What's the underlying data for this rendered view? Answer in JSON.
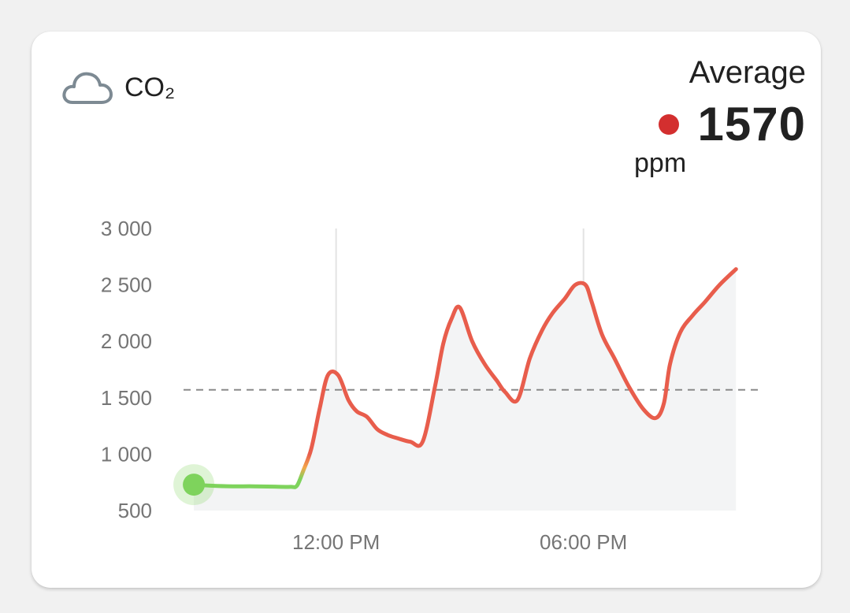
{
  "card": {
    "title": "CO₂",
    "icon": "cloud-icon",
    "average_label": "Average",
    "average_value": "1570",
    "average_unit": "ppm",
    "status_color": "#d32f2f"
  },
  "chart_data": {
    "type": "line",
    "title": "",
    "xlabel": "",
    "ylabel": "",
    "ylim": [
      500,
      3000
    ],
    "xlim": [
      8.3,
      22.0
    ],
    "x_ticks": [
      {
        "value": 12,
        "label": "12:00 PM"
      },
      {
        "value": 18,
        "label": "06:00 PM"
      }
    ],
    "y_ticks": [
      {
        "value": 3000,
        "label": "3 000"
      },
      {
        "value": 2500,
        "label": "2 500"
      },
      {
        "value": 2000,
        "label": "2 000"
      },
      {
        "value": 1500,
        "label": "1 500"
      },
      {
        "value": 1000,
        "label": "1 000"
      },
      {
        "value": 500,
        "label": "500"
      }
    ],
    "vertical_grid": true,
    "average_line": 1570,
    "series": [
      {
        "x": [
          8.55,
          9.0,
          9.5,
          10.0,
          10.5,
          10.9,
          11.05,
          11.2,
          11.4,
          11.6,
          11.8,
          12.05,
          12.3,
          12.5,
          12.75,
          13.0,
          13.25,
          13.5,
          13.8,
          14.1,
          14.4,
          14.6,
          14.8,
          15.0,
          15.3,
          15.6,
          15.9,
          16.1,
          16.4,
          16.7,
          17.0,
          17.25,
          17.55,
          17.8,
          18.05,
          18.2,
          18.45,
          18.75,
          19.1,
          19.45,
          19.75,
          19.95,
          20.1,
          20.35,
          20.65,
          20.95,
          21.3,
          21.7
        ],
        "y": [
          730,
          720,
          715,
          715,
          712,
          710,
          720,
          850,
          1050,
          1400,
          1700,
          1700,
          1480,
          1380,
          1330,
          1220,
          1170,
          1140,
          1110,
          1110,
          1600,
          1980,
          2200,
          2300,
          2000,
          1800,
          1650,
          1550,
          1480,
          1850,
          2100,
          2250,
          2380,
          2500,
          2500,
          2350,
          2060,
          1850,
          1600,
          1400,
          1320,
          1450,
          1800,
          2080,
          2230,
          2350,
          2500,
          2640
        ],
        "colors": {
          "good": "#7ed35c",
          "moderate": "#f2a64a",
          "poor": "#e85d4c"
        }
      }
    ]
  }
}
